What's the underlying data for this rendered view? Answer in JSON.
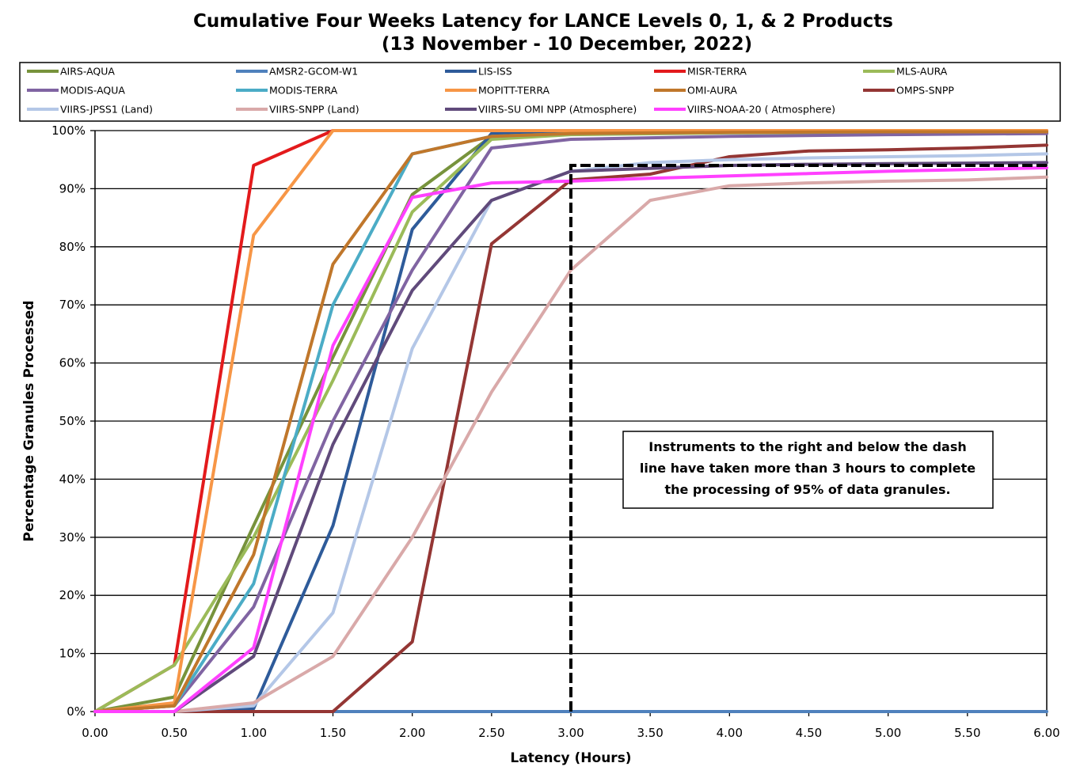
{
  "chart_data": {
    "type": "line",
    "title": "Cumulative Four Weeks Latency  for LANCE Levels 0, 1, & 2 Products",
    "subtitle": "(13  November   -  10  December,  2022)",
    "xlabel": "Latency (Hours)",
    "ylabel": "Percentage Granules Processed",
    "xlim": [
      0,
      6
    ],
    "ylim": [
      0,
      100
    ],
    "x_ticks": [
      "0.00",
      "0.50",
      "1.00",
      "1.50",
      "2.00",
      "2.50",
      "3.00",
      "3.50",
      "4.00",
      "4.50",
      "5.00",
      "5.50",
      "6.00"
    ],
    "y_ticks": [
      "0%",
      "10%",
      "20%",
      "30%",
      "40%",
      "50%",
      "60%",
      "70%",
      "80%",
      "90%",
      "100%"
    ],
    "grid": "horizontal",
    "legend_position": "top",
    "annotation": {
      "lines": [
        "Instruments to the right and below the dash",
        "line have taken more than 3 hours to complete",
        "the processing of 95% of data granules."
      ],
      "threshold_x": 3.0,
      "threshold_y": 94
    },
    "series": [
      {
        "name": "AIRS-AQUA",
        "color": "#77933C",
        "x": [
          0,
          0.5,
          1,
          1.5,
          2,
          2.5,
          3,
          4,
          5,
          6
        ],
        "y": [
          0,
          2.5,
          32,
          61,
          89,
          99,
          99.6,
          99.7,
          99.7,
          99.7
        ]
      },
      {
        "name": "AMSR2-GCOM-W1",
        "color": "#4F81BD",
        "x": [
          0,
          1,
          1.5,
          2,
          2.5,
          3,
          4,
          5,
          6
        ],
        "y": [
          0,
          0,
          0,
          0,
          0,
          0,
          0,
          0,
          0
        ]
      },
      {
        "name": "LIS-ISS",
        "color": "#2E5B9A",
        "x": [
          0,
          0.5,
          1,
          1.5,
          2,
          2.5,
          3,
          4,
          5,
          6
        ],
        "y": [
          0,
          0,
          0.5,
          32,
          83,
          99.5,
          99.7,
          99.8,
          99.8,
          99.8
        ]
      },
      {
        "name": "MISR-TERRA",
        "color": "#E31A1C",
        "x": [
          0,
          0.5,
          1,
          1.5,
          2,
          3,
          4,
          5,
          6
        ],
        "y": [
          0,
          8,
          94,
          100,
          100,
          100,
          100,
          100,
          100
        ]
      },
      {
        "name": "MLS-AURA",
        "color": "#9BBB59",
        "x": [
          0,
          0.5,
          1,
          1.5,
          2,
          2.5,
          3,
          4,
          5,
          6
        ],
        "y": [
          0,
          8,
          30,
          57,
          86,
          98.5,
          99.3,
          99.6,
          99.7,
          99.7
        ]
      },
      {
        "name": "MODIS-AQUA",
        "color": "#8064A2",
        "x": [
          0,
          0.5,
          1,
          1.5,
          2,
          2.5,
          3,
          4,
          5,
          6
        ],
        "y": [
          0,
          1,
          18,
          50,
          76,
          97,
          98.5,
          99,
          99.3,
          99.5
        ]
      },
      {
        "name": "MODIS-TERRA",
        "color": "#4BACC6",
        "x": [
          0,
          0.5,
          1,
          1.5,
          2,
          2.5,
          3,
          4,
          5,
          6
        ],
        "y": [
          0,
          1,
          22,
          70,
          96,
          99,
          99.5,
          99.7,
          99.8,
          99.8
        ]
      },
      {
        "name": "MOPITT-TERRA",
        "color": "#F79646",
        "x": [
          0,
          0.5,
          1,
          1.5,
          2,
          3,
          4,
          5,
          6
        ],
        "y": [
          0,
          1.5,
          82,
          100,
          100,
          100,
          100,
          100,
          100
        ]
      },
      {
        "name": "OMI-AURA",
        "color": "#C0772B",
        "x": [
          0,
          0.5,
          1,
          1.5,
          2,
          2.5,
          3,
          4,
          5,
          6
        ],
        "y": [
          0,
          1,
          27,
          77,
          96,
          99,
          99.5,
          99.7,
          99.8,
          99.8
        ]
      },
      {
        "name": "OMPS-SNPP",
        "color": "#943634",
        "x": [
          0,
          0.5,
          1,
          1.5,
          2,
          2.5,
          3,
          3.5,
          4,
          4.5,
          5,
          5.5,
          6
        ],
        "y": [
          0,
          0,
          0,
          0,
          12,
          80.5,
          91.5,
          92.5,
          95.5,
          96.5,
          96.7,
          97,
          97.5
        ]
      },
      {
        "name": "VIIRS-JPSS1 (Land)",
        "color": "#B4C7E7",
        "x": [
          0,
          0.5,
          1,
          1.5,
          2,
          2.5,
          3,
          3.5,
          4,
          4.5,
          5,
          5.5,
          6
        ],
        "y": [
          0,
          0,
          1,
          17,
          62.5,
          88,
          93,
          94.5,
          95,
          95.3,
          95.5,
          95.7,
          96
        ]
      },
      {
        "name": "VIIRS-SNPP (Land)",
        "color": "#D9A9A9",
        "x": [
          0,
          0.5,
          1,
          1.5,
          2,
          2.5,
          3,
          3.5,
          4,
          4.5,
          5,
          5.5,
          6
        ],
        "y": [
          0,
          0,
          1.5,
          9.5,
          30,
          55,
          76,
          88,
          90.5,
          91,
          91.3,
          91.5,
          92
        ]
      },
      {
        "name": "VIIRS-SU OMI NPP (Atmosphere)",
        "color": "#604A7B",
        "x": [
          0,
          0.5,
          1,
          1.5,
          2,
          2.5,
          3,
          3.5,
          4,
          4.5,
          5,
          5.5,
          6
        ],
        "y": [
          0,
          0,
          9.5,
          46,
          72.5,
          88,
          93,
          93.5,
          94,
          94.2,
          94.3,
          94.4,
          94.5
        ]
      },
      {
        "name": "VIIRS-NOAA-20 ( Atmosphere)",
        "color": "#FF40FF",
        "x": [
          0,
          0.5,
          1,
          1.5,
          2,
          2.5,
          3,
          3.5,
          4,
          4.5,
          5,
          5.5,
          6
        ],
        "y": [
          0,
          0,
          11,
          63,
          88.5,
          91,
          91.3,
          91.8,
          92.2,
          92.6,
          93,
          93.3,
          93.6
        ]
      }
    ]
  }
}
